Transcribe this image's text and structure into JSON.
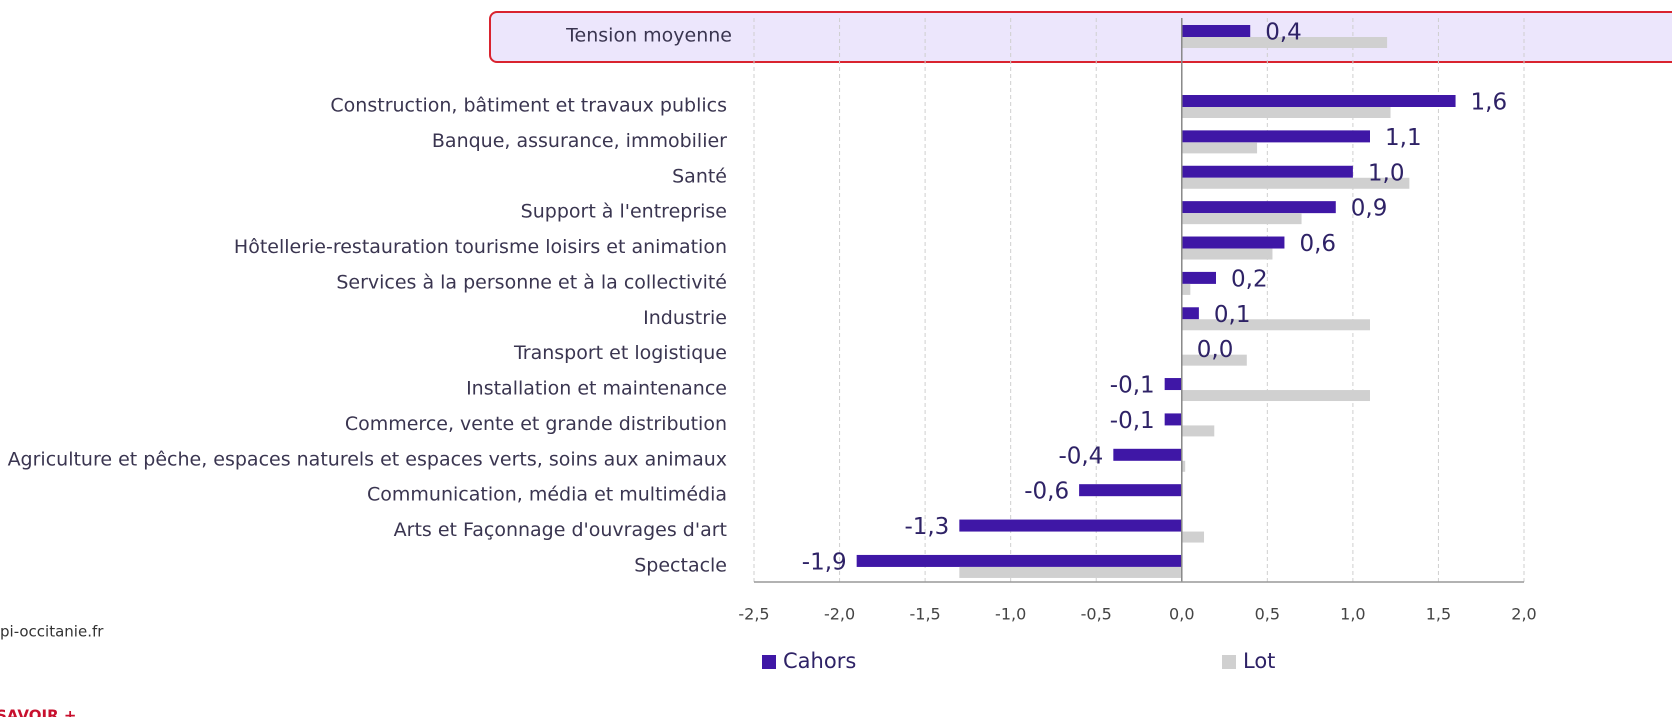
{
  "chart_data": {
    "type": "hbar",
    "categories": [
      "Tension moyenne",
      "Construction, bâtiment et travaux publics",
      "Banque, assurance, immobilier",
      "Santé",
      "Support à l'entreprise",
      "Hôtellerie-restauration tourisme loisirs et animation",
      "Services à la personne et à la collectivité",
      "Industrie",
      "Transport et logistique",
      "Installation et maintenance",
      "Commerce, vente et grande distribution",
      "Agriculture et pêche, espaces naturels et espaces verts, soins aux animaux",
      "Communication, média et multimédia",
      "Arts et Façonnage d'ouvrages d'art",
      "Spectacle"
    ],
    "series": [
      {
        "name": "Cahors",
        "color": "#3f17a6",
        "values": [
          0.4,
          1.6,
          1.1,
          1.0,
          0.9,
          0.6,
          0.2,
          0.1,
          0.0,
          -0.1,
          -0.1,
          -0.4,
          -0.6,
          -1.3,
          -1.9
        ],
        "value_labels": [
          "0,4",
          "1,6",
          "1,1",
          "1,0",
          "0,9",
          "0,6",
          "0,2",
          "0,1",
          "0,0",
          "-0,1",
          "-0,1",
          "-0,4",
          "-0,6",
          "-1,3",
          "-1,9"
        ]
      },
      {
        "name": "Lot",
        "color": "#d0d0d0",
        "values": [
          1.2,
          1.22,
          0.44,
          1.33,
          0.7,
          0.53,
          0.05,
          1.1,
          0.38,
          1.1,
          0.19,
          0.02,
          0.0,
          0.13,
          -1.3
        ]
      }
    ],
    "xlim": [
      -2.5,
      2.0
    ],
    "xticks": [
      {
        "value": -2.5,
        "label": "-2,5"
      },
      {
        "value": -2.0,
        "label": "-2,0"
      },
      {
        "value": -1.5,
        "label": "-1,5"
      },
      {
        "value": -1.0,
        "label": "-1,0"
      },
      {
        "value": -0.5,
        "label": "-0,5"
      },
      {
        "value": 0.0,
        "label": "0,0"
      },
      {
        "value": 0.5,
        "label": "0,5"
      },
      {
        "value": 1.0,
        "label": "1,0"
      },
      {
        "value": 1.5,
        "label": "1,5"
      },
      {
        "value": 2.0,
        "label": "2,0"
      }
    ],
    "grid": true,
    "source": "pi-occitanie.fr",
    "link": "SAVOIR +"
  }
}
